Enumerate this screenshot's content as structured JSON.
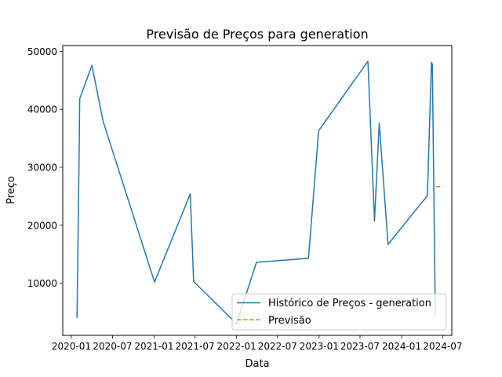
{
  "chart_data": {
    "type": "line",
    "title": "Previsão de Preços para generation",
    "xlabel": "Data",
    "ylabel": "Preço",
    "xlim": [
      "2019-11-24",
      "2024-08-10"
    ],
    "ylim": [
      1000,
      51000
    ],
    "x_ticks": [
      {
        "date": "2020-01-01",
        "label": "2020-01"
      },
      {
        "date": "2020-07-01",
        "label": "2020-07"
      },
      {
        "date": "2021-01-01",
        "label": "2021-01"
      },
      {
        "date": "2021-07-01",
        "label": "2021-07"
      },
      {
        "date": "2022-01-01",
        "label": "2022-01"
      },
      {
        "date": "2022-07-01",
        "label": "2022-07"
      },
      {
        "date": "2023-01-01",
        "label": "2023-01"
      },
      {
        "date": "2023-07-01",
        "label": "2023-07"
      },
      {
        "date": "2024-01-01",
        "label": "2024-01"
      },
      {
        "date": "2024-07-01",
        "label": "2024-07"
      }
    ],
    "y_ticks": [
      {
        "value": 10000,
        "label": "10000"
      },
      {
        "value": 20000,
        "label": "20000"
      },
      {
        "value": 30000,
        "label": "30000"
      },
      {
        "value": 40000,
        "label": "40000"
      },
      {
        "value": 50000,
        "label": "50000"
      }
    ],
    "grid": false,
    "legend_position": "lower-right",
    "series": [
      {
        "name": "Histórico de Preços - generation",
        "color": "#1f77b4",
        "style": "solid",
        "points": [
          {
            "x": "2020-01-26",
            "y": 4000
          },
          {
            "x": "2020-02-05",
            "y": 34000
          },
          {
            "x": "2020-02-07",
            "y": 41800
          },
          {
            "x": "2020-04-01",
            "y": 47600
          },
          {
            "x": "2020-05-20",
            "y": 38000
          },
          {
            "x": "2021-01-03",
            "y": 10200
          },
          {
            "x": "2021-06-10",
            "y": 25400
          },
          {
            "x": "2021-06-25",
            "y": 10300
          },
          {
            "x": "2022-01-01",
            "y": 3000
          },
          {
            "x": "2022-03-30",
            "y": 13600
          },
          {
            "x": "2022-11-15",
            "y": 14300
          },
          {
            "x": "2022-12-30",
            "y": 36300
          },
          {
            "x": "2023-08-05",
            "y": 48300
          },
          {
            "x": "2023-09-03",
            "y": 20700
          },
          {
            "x": "2023-09-24",
            "y": 37600
          },
          {
            "x": "2023-11-02",
            "y": 16700
          },
          {
            "x": "2024-04-24",
            "y": 25100
          },
          {
            "x": "2024-05-12",
            "y": 48100
          },
          {
            "x": "2024-05-14",
            "y": 48000
          },
          {
            "x": "2024-05-16",
            "y": 47600
          },
          {
            "x": "2024-05-28",
            "y": 8000
          },
          {
            "x": "2024-05-30",
            "y": 4400
          }
        ]
      },
      {
        "name": "Previsão",
        "color": "#ff7f0e",
        "style": "dashed",
        "points": [
          {
            "x": "2024-06-01",
            "y": 26600
          },
          {
            "x": "2024-06-15",
            "y": 26700
          },
          {
            "x": "2024-07-01",
            "y": 26700
          }
        ]
      }
    ]
  }
}
